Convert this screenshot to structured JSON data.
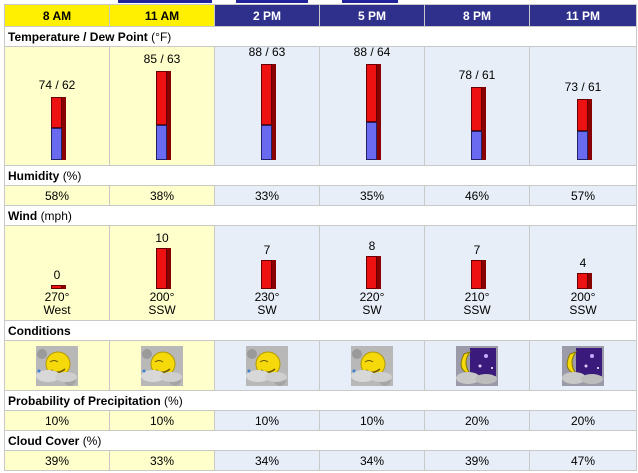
{
  "times": [
    {
      "label": "8 AM",
      "highlight": true
    },
    {
      "label": "11 AM",
      "highlight": true
    },
    {
      "label": "2 PM",
      "highlight": false
    },
    {
      "label": "5 PM",
      "highlight": false
    },
    {
      "label": "8 PM",
      "highlight": false
    },
    {
      "label": "11 PM",
      "highlight": false
    }
  ],
  "sections": {
    "temperature": {
      "title": "Temperature / Dew Point",
      "unit": "(°F)"
    },
    "humidity": {
      "title": "Humidity",
      "unit": "(%)"
    },
    "wind": {
      "title": "Wind",
      "unit": "(mph)"
    },
    "conditions": {
      "title": "Conditions",
      "unit": ""
    },
    "precipitation": {
      "title": "Probability of Precipitation",
      "unit": "(%)"
    },
    "cloud": {
      "title": "Cloud Cover",
      "unit": "(%)"
    }
  },
  "temperature": [
    {
      "label": "74 / 62",
      "temp": 74,
      "dew": 62
    },
    {
      "label": "85 / 63",
      "temp": 85,
      "dew": 63
    },
    {
      "label": "88 / 63",
      "temp": 88,
      "dew": 63
    },
    {
      "label": "88 / 64",
      "temp": 88,
      "dew": 64
    },
    {
      "label": "78 / 61",
      "temp": 78,
      "dew": 61
    },
    {
      "label": "73 / 61",
      "temp": 73,
      "dew": 61
    }
  ],
  "humidity": [
    "58%",
    "38%",
    "33%",
    "35%",
    "46%",
    "57%"
  ],
  "wind": [
    {
      "speed": "0",
      "speed_value": 0,
      "degrees": "270°",
      "direction": "West"
    },
    {
      "speed": "10",
      "speed_value": 10,
      "degrees": "200°",
      "direction": "SSW"
    },
    {
      "speed": "7",
      "speed_value": 7,
      "degrees": "230°",
      "direction": "SW"
    },
    {
      "speed": "8",
      "speed_value": 8,
      "degrees": "220°",
      "direction": "SW"
    },
    {
      "speed": "7",
      "speed_value": 7,
      "degrees": "210°",
      "direction": "SSW"
    },
    {
      "speed": "4",
      "speed_value": 4,
      "degrees": "200°",
      "direction": "SSW"
    }
  ],
  "conditions": [
    {
      "icon": "partly-cloudy-day-icon"
    },
    {
      "icon": "partly-cloudy-day-icon"
    },
    {
      "icon": "partly-cloudy-day-icon"
    },
    {
      "icon": "partly-cloudy-day-icon"
    },
    {
      "icon": "partly-cloudy-night-icon"
    },
    {
      "icon": "partly-cloudy-night-icon"
    }
  ],
  "precipitation": [
    "10%",
    "10%",
    "10%",
    "10%",
    "20%",
    "20%"
  ],
  "cloud_cover": [
    "39%",
    "33%",
    "34%",
    "34%",
    "39%",
    "47%"
  ],
  "colors": {
    "header_dark": "#2f2f8c",
    "header_highlight": "#ffef00",
    "cell_highlight": "#ffffcc",
    "cell_normal": "#e8eef8",
    "bar_temp": "#ee1111",
    "bar_dew": "#6a6af0"
  }
}
